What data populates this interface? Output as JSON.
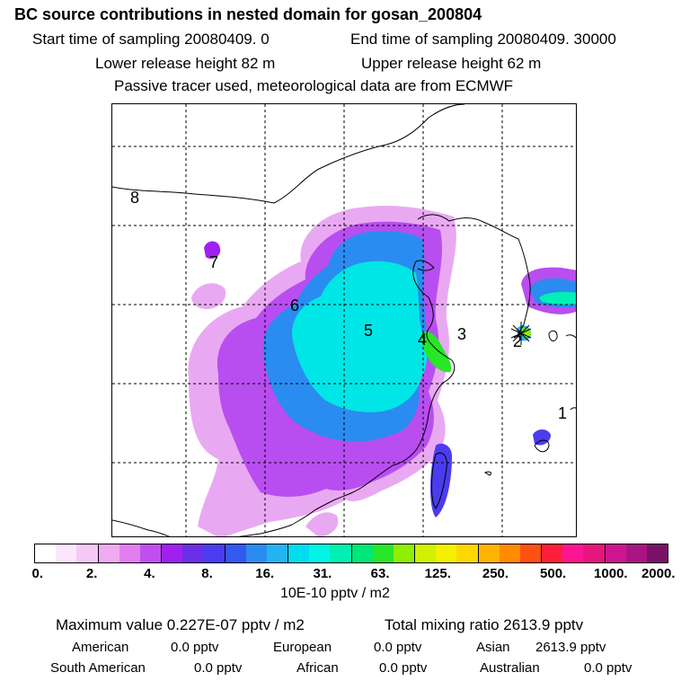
{
  "header": {
    "title": "BC  source contributions in nested domain for gosan_200804",
    "start_time": "Start time of sampling 20080409.    0",
    "end_time": "End time of sampling 20080409. 30000",
    "lower_height": "Lower release height   82 m",
    "upper_height": "Upper release height   62 m",
    "tracer_note": "Passive tracer used, meteorological data are from ECMWF"
  },
  "map": {
    "region_labels": [
      "8",
      "7",
      "6",
      "5",
      "4",
      "3",
      "2",
      "1"
    ]
  },
  "colorbar": {
    "colors": [
      "#ffffff",
      "#fbe6fb",
      "#f5c8f5",
      "#eeaaf2",
      "#e27df0",
      "#c14ff0",
      "#a020f0",
      "#6a2ee8",
      "#4b3cf0",
      "#3259f0",
      "#2a8cf0",
      "#21b4f0",
      "#00dcf0",
      "#00f5e8",
      "#00f0b4",
      "#00e678",
      "#28e628",
      "#90ee00",
      "#d2f000",
      "#f5f000",
      "#ffd700",
      "#ffb400",
      "#ff8c00",
      "#ff5014",
      "#ff1e3c",
      "#ff1493",
      "#e6147d",
      "#cd1491",
      "#aa1482",
      "#7a1068"
    ],
    "tick_labels": [
      "0.",
      "2.",
      "4.",
      "8.",
      "16.",
      "31.",
      "63.",
      "125.",
      "250.",
      "500.",
      "1000.",
      "2000."
    ],
    "units": "10E-10 pptv / m2"
  },
  "stats": {
    "max_value": "Maximum value  0.227E-07 pptv / m2",
    "total": "Total mixing ratio     2613.9 pptv",
    "sources": [
      {
        "name": "American",
        "value": "0.0 pptv"
      },
      {
        "name": "European",
        "value": "0.0 pptv"
      },
      {
        "name": "Asian",
        "value": "2613.9 pptv"
      },
      {
        "name": "South American",
        "value": "0.0 pptv"
      },
      {
        "name": "African",
        "value": "0.0 pptv"
      },
      {
        "name": "Australian",
        "value": "0.0 pptv"
      }
    ]
  }
}
